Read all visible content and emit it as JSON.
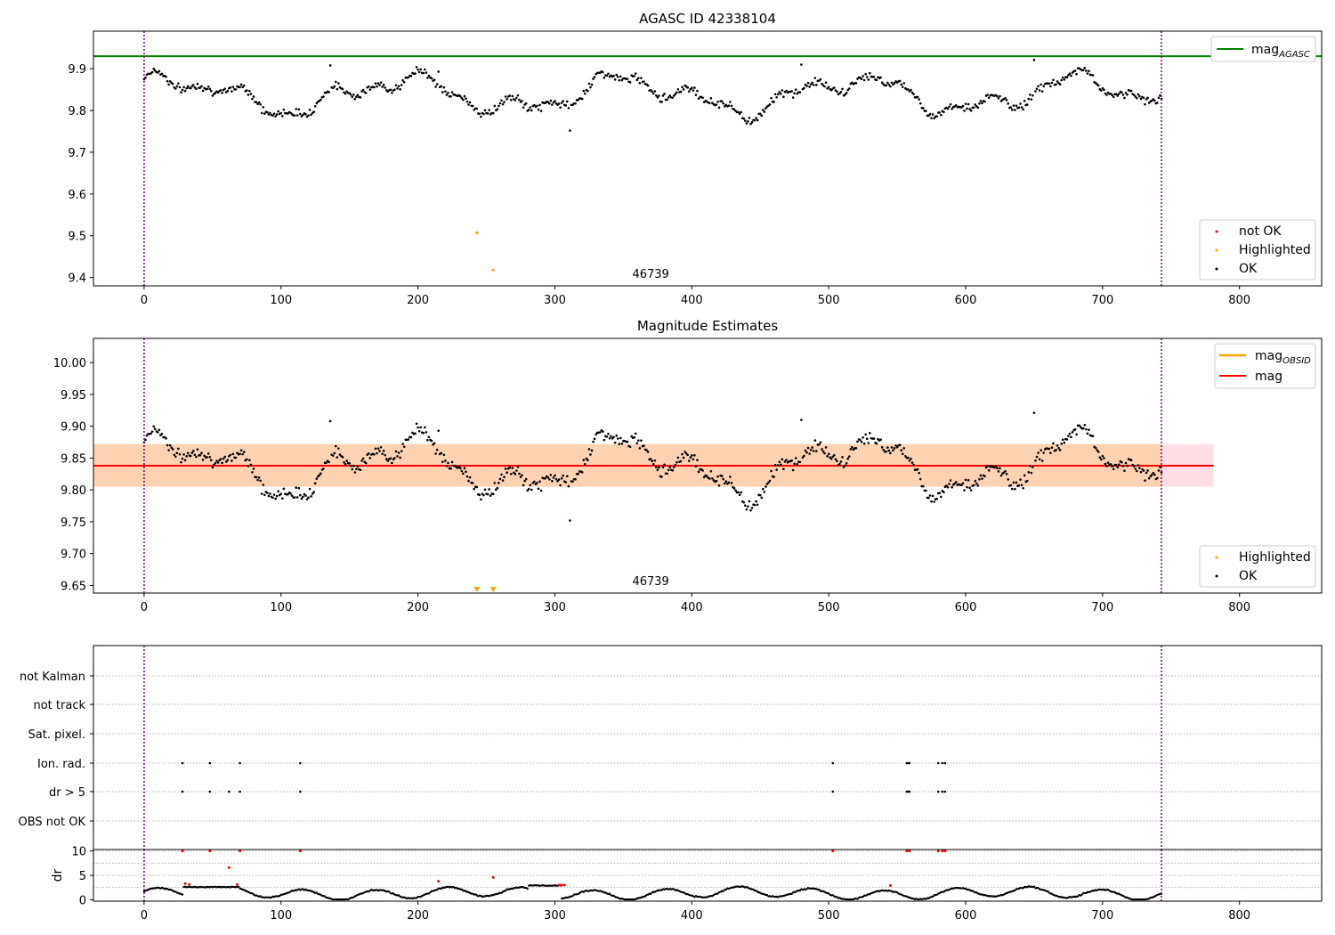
{
  "chart_data": [
    {
      "type": "scatter",
      "title": "AGASC ID 42338104",
      "xlim": [
        -37,
        860
      ],
      "ylim": [
        9.38,
        9.99
      ],
      "x_ticks": [
        0,
        100,
        200,
        300,
        400,
        500,
        600,
        700,
        800
      ],
      "y_ticks": [
        9.4,
        9.5,
        9.6,
        9.7,
        9.8,
        9.9
      ],
      "hline": {
        "name": "mag_AGASC",
        "value": 9.93,
        "color": "#008000"
      },
      "vlines": [
        0,
        743
      ],
      "annotation": {
        "text": "46739",
        "x": 370
      },
      "legend_lines": [
        {
          "label": "mag",
          "sub": "AGASC",
          "color": "#008000"
        }
      ],
      "legend_points": [
        {
          "label": "not OK",
          "color": "#ff0000"
        },
        {
          "label": "Highlighted",
          "color": "#ffa500"
        },
        {
          "label": "OK",
          "color": "#000000"
        }
      ],
      "points_ok_generated": {
        "x_start": 0,
        "x_end": 743,
        "count": 743,
        "trend": "slow oscillation around 9.84 between 9.76 and 9.92"
      },
      "points_ok_outliers": [
        {
          "x": 215,
          "y": 9.893
        },
        {
          "x": 311,
          "y": 9.752
        },
        {
          "x": 136,
          "y": 9.908
        },
        {
          "x": 480,
          "y": 9.91
        },
        {
          "x": 650,
          "y": 9.921
        }
      ],
      "points_highlighted": [
        {
          "x": 243,
          "y": 9.507
        },
        {
          "x": 255,
          "y": 9.418
        }
      ],
      "points_not_ok": []
    },
    {
      "type": "scatter",
      "title": "Magnitude Estimates",
      "xlim": [
        -37,
        860
      ],
      "ylim": [
        9.638,
        10.038
      ],
      "x_ticks": [
        0,
        100,
        200,
        300,
        400,
        500,
        600,
        700,
        800
      ],
      "y_ticks": [
        9.65,
        9.7,
        9.75,
        9.8,
        9.85,
        9.9,
        9.95,
        10.0
      ],
      "mag_line": {
        "value": 9.838,
        "color": "#ff0000"
      },
      "band_inner": {
        "lo": 9.805,
        "hi": 9.872,
        "x_end": 743
      },
      "band_outer": {
        "lo": 9.805,
        "hi": 9.872,
        "x_end": 781
      },
      "vlines": [
        0,
        743
      ],
      "annotation": {
        "text": "46739",
        "x": 370
      },
      "legend_lines": [
        {
          "label": "mag",
          "sub": "OBSID",
          "color": "#ffa500"
        },
        {
          "label": "mag",
          "sub": "",
          "color": "#ff0000"
        }
      ],
      "legend_points": [
        {
          "label": "Highlighted",
          "color": "#ffa500"
        },
        {
          "label": "OK",
          "color": "#000000"
        }
      ],
      "highlighted_markers_x": [
        243,
        255
      ]
    },
    {
      "type": "scatter",
      "title": "",
      "xlim": [
        -37,
        860
      ],
      "x_ticks": [
        0,
        100,
        200,
        300,
        400,
        500,
        600,
        700,
        800
      ],
      "flag_rows": [
        "not Kalman",
        "not track",
        "Sat. pixel.",
        "Ion. rad.",
        "dr > 5",
        "OBS not OK"
      ],
      "flag_points": {
        "Ion. rad.": [
          28,
          48,
          70,
          114,
          503,
          557,
          558,
          559,
          580,
          583,
          585
        ],
        "dr > 5": [
          28,
          48,
          62,
          70,
          114,
          503,
          557,
          558,
          559,
          580,
          583,
          585
        ]
      },
      "vlines": [
        0,
        743
      ]
    },
    {
      "type": "scatter",
      "title": "",
      "ylabel": "dr",
      "xlim": [
        -37,
        860
      ],
      "ylim": [
        -0.3,
        10.3
      ],
      "x_ticks": [
        0,
        100,
        200,
        300,
        400,
        500,
        600,
        700,
        800
      ],
      "y_ticks": [
        0,
        5,
        10
      ],
      "red_points": [
        {
          "x": 28,
          "y": 10
        },
        {
          "x": 48,
          "y": 10
        },
        {
          "x": 70,
          "y": 10
        },
        {
          "x": 114,
          "y": 10
        },
        {
          "x": 503,
          "y": 10
        },
        {
          "x": 557,
          "y": 10
        },
        {
          "x": 559,
          "y": 10
        },
        {
          "x": 580,
          "y": 10
        },
        {
          "x": 583,
          "y": 10
        },
        {
          "x": 585,
          "y": 10
        },
        {
          "x": 62,
          "y": 6.6
        },
        {
          "x": 30,
          "y": 3.3
        },
        {
          "x": 33,
          "y": 3.1
        },
        {
          "x": 68,
          "y": 3.1
        },
        {
          "x": 215,
          "y": 3.8
        },
        {
          "x": 255,
          "y": 4.6
        },
        {
          "x": 303,
          "y": 3.0
        },
        {
          "x": 305,
          "y": 3.0
        },
        {
          "x": 307,
          "y": 3.0
        },
        {
          "x": 545,
          "y": 2.9
        }
      ],
      "black_points_generated": {
        "x_start": 0,
        "x_end": 743,
        "count": 743,
        "trend": "dr mostly between 0 and 3"
      },
      "vlines": [
        0,
        743
      ]
    }
  ]
}
